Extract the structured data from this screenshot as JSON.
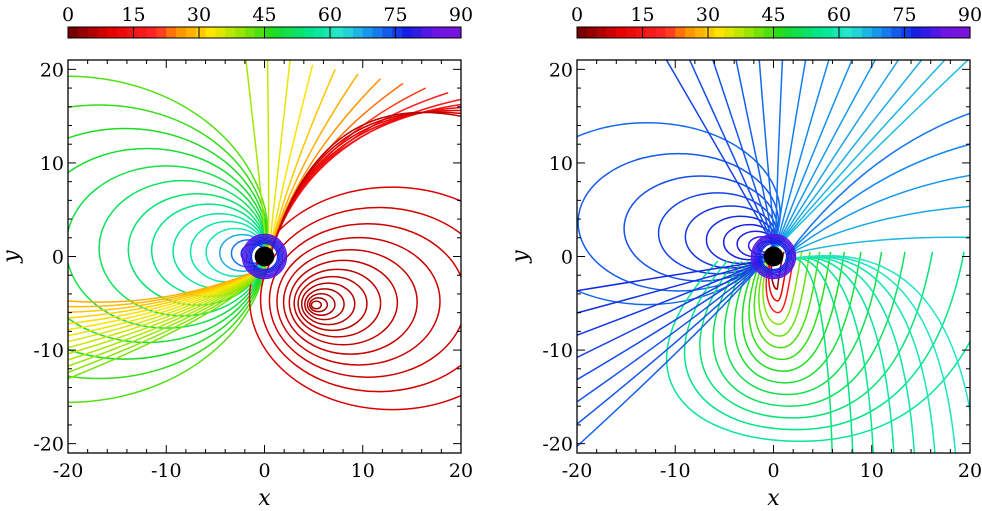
{
  "chart_data": [
    {
      "type": "contour",
      "panel": "left",
      "xlabel": "x",
      "ylabel": "y",
      "xlim": [
        -20,
        20
      ],
      "ylim": [
        -21,
        21
      ],
      "xticks": [
        "-20",
        "-10",
        "0",
        "10",
        "20"
      ],
      "yticks": [
        "-20",
        "-10",
        "0",
        "10",
        "20"
      ],
      "colorbar": {
        "range": [
          0,
          90
        ],
        "ticks": [
          "0",
          "15",
          "30",
          "45",
          "60",
          "75",
          "90"
        ],
        "placement": "top"
      },
      "central_body": {
        "x": 0,
        "y": 0,
        "radius": 1.0
      },
      "features": [
        {
          "kind": "loop-family",
          "center": [
            0,
            0.5
          ],
          "level": 50,
          "color": "#20d020",
          "note": "large closed loops west of the body"
        },
        {
          "kind": "loop-family",
          "center": [
            5,
            -5.2
          ],
          "level": 3,
          "color": "#e00000",
          "note": "nested closed loops southeast"
        },
        {
          "kind": "open-lines",
          "levels": [
            10,
            20,
            30,
            38
          ],
          "colors": [
            "#ff4000",
            "#ff8000",
            "#d0e000",
            "#ffe800"
          ],
          "note": "lines sweeping from body to upper-right and lower-left"
        }
      ]
    },
    {
      "type": "contour",
      "panel": "right",
      "xlabel": "x",
      "ylabel": "y",
      "xlim": [
        -20,
        20
      ],
      "ylim": [
        -21,
        21
      ],
      "xticks": [
        "-20",
        "-10",
        "0",
        "10",
        "20"
      ],
      "yticks": [
        "-20",
        "-10",
        "0",
        "10",
        "20"
      ],
      "colorbar": {
        "range": [
          0,
          90
        ],
        "ticks": [
          "0",
          "15",
          "30",
          "45",
          "60",
          "75",
          "90"
        ],
        "placement": "top"
      },
      "central_body": {
        "x": 0,
        "y": 0,
        "radius": 1.0
      },
      "features": [
        {
          "kind": "loop-family",
          "center": [
            -1,
            1.5
          ],
          "level": 82,
          "color": "#1a2ce0",
          "note": "blue loops northwest of body"
        },
        {
          "kind": "tongue-family",
          "center": [
            0.5,
            -1.5
          ],
          "level": 45,
          "color": "#20e020",
          "note": "downward U-shaped tongues, red core near body"
        },
        {
          "kind": "open-lines",
          "levels": [
            70,
            78,
            85
          ],
          "colors": [
            "#10a8e0",
            "#1060f0",
            "#1010c0"
          ],
          "note": "blue lines fanning to top and left"
        }
      ]
    }
  ]
}
